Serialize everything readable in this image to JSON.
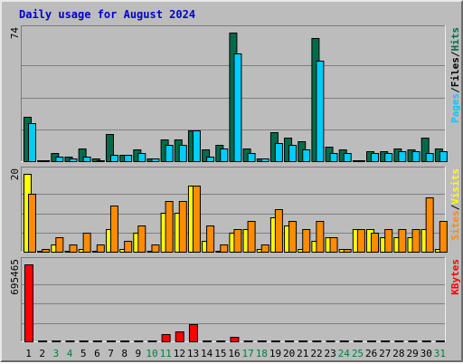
{
  "chart_data": {
    "type": "bar",
    "title": "Daily usage for August 2024",
    "colors": {
      "pages": "#00ccff",
      "files": "#0066ff",
      "hits": "#006b4b",
      "sites": "#ff8c00",
      "visits": "#ffff00",
      "kbytes": "#ff0000",
      "title": "#0000cc",
      "weekend_day": "#008040",
      "weekday": "#000000",
      "plot_bg": "#bcbcbc",
      "grid": "#808080",
      "slash": "#000000"
    },
    "days": [
      "1",
      "2",
      "3",
      "4",
      "5",
      "6",
      "7",
      "8",
      "9",
      "10",
      "11",
      "12",
      "13",
      "14",
      "15",
      "16",
      "17",
      "18",
      "19",
      "20",
      "21",
      "22",
      "23",
      "24",
      "25",
      "26",
      "27",
      "28",
      "29",
      "30",
      "31"
    ],
    "weekend_days": [
      "3",
      "4",
      "10",
      "11",
      "17",
      "18",
      "24",
      "25",
      "31"
    ],
    "panels": [
      {
        "id": "hits-files-pages",
        "ymax_label": "74",
        "ylim": [
          0,
          74
        ],
        "series_label_parts": [
          "Pages",
          "/",
          "Files",
          "/",
          "Hits"
        ],
        "series": [
          {
            "name": "Hits",
            "color_key": "hits",
            "values": [
              26,
              1,
              5,
              3,
              8,
              2,
              16,
              4,
              7,
              2,
              13,
              13,
              18,
              7,
              10,
              74,
              8,
              2,
              17,
              14,
              12,
              71,
              9,
              7,
              1,
              6,
              6,
              8,
              7,
              14,
              8
            ]
          },
          {
            "name": "Pages",
            "color_key": "pages",
            "values": [
              22,
              1,
              3,
              2,
              3,
              1,
              4,
              4,
              5,
              2,
              10,
              10,
              18,
              3,
              8,
              62,
              5,
              2,
              11,
              10,
              7,
              58,
              5,
              5,
              1,
              5,
              5,
              6,
              6,
              5,
              6
            ]
          }
        ]
      },
      {
        "id": "visits-sites",
        "ymax_label": "20",
        "ylim": [
          0,
          20
        ],
        "series_label_parts": [
          "Sites",
          "/",
          "Visits"
        ],
        "series": [
          {
            "name": "Visits",
            "color_key": "visits",
            "values": [
              20,
              0,
              2,
              0,
              1,
              0,
              6,
              1,
              5,
              0,
              10,
              10,
              17,
              3,
              0,
              5,
              6,
              1,
              9,
              7,
              1,
              3,
              4,
              1,
              6,
              6,
              4,
              4,
              4,
              6,
              1
            ]
          },
          {
            "name": "Sites",
            "color_key": "sites",
            "values": [
              15,
              1,
              4,
              2,
              5,
              2,
              12,
              3,
              7,
              2,
              13,
              13,
              17,
              7,
              2,
              6,
              8,
              2,
              11,
              8,
              6,
              8,
              4,
              1,
              6,
              5,
              6,
              6,
              6,
              14,
              8
            ]
          }
        ]
      },
      {
        "id": "kbytes",
        "ymax_label": "695465",
        "ylim": [
          0,
          695465
        ],
        "series_label_parts": [
          "KBytes"
        ],
        "series": [
          {
            "name": "KBytes",
            "color_key": "kbytes",
            "values": [
              695465,
              5000,
              6000,
              4000,
              6000,
              3000,
              9000,
              5000,
              6000,
              3000,
              75000,
              100000,
              165000,
              6000,
              7000,
              52000,
              8000,
              3000,
              9000,
              7000,
              5000,
              9000,
              6000,
              4000,
              2000,
              5000,
              5000,
              5000,
              5000,
              6000,
              5000
            ]
          }
        ]
      }
    ]
  }
}
